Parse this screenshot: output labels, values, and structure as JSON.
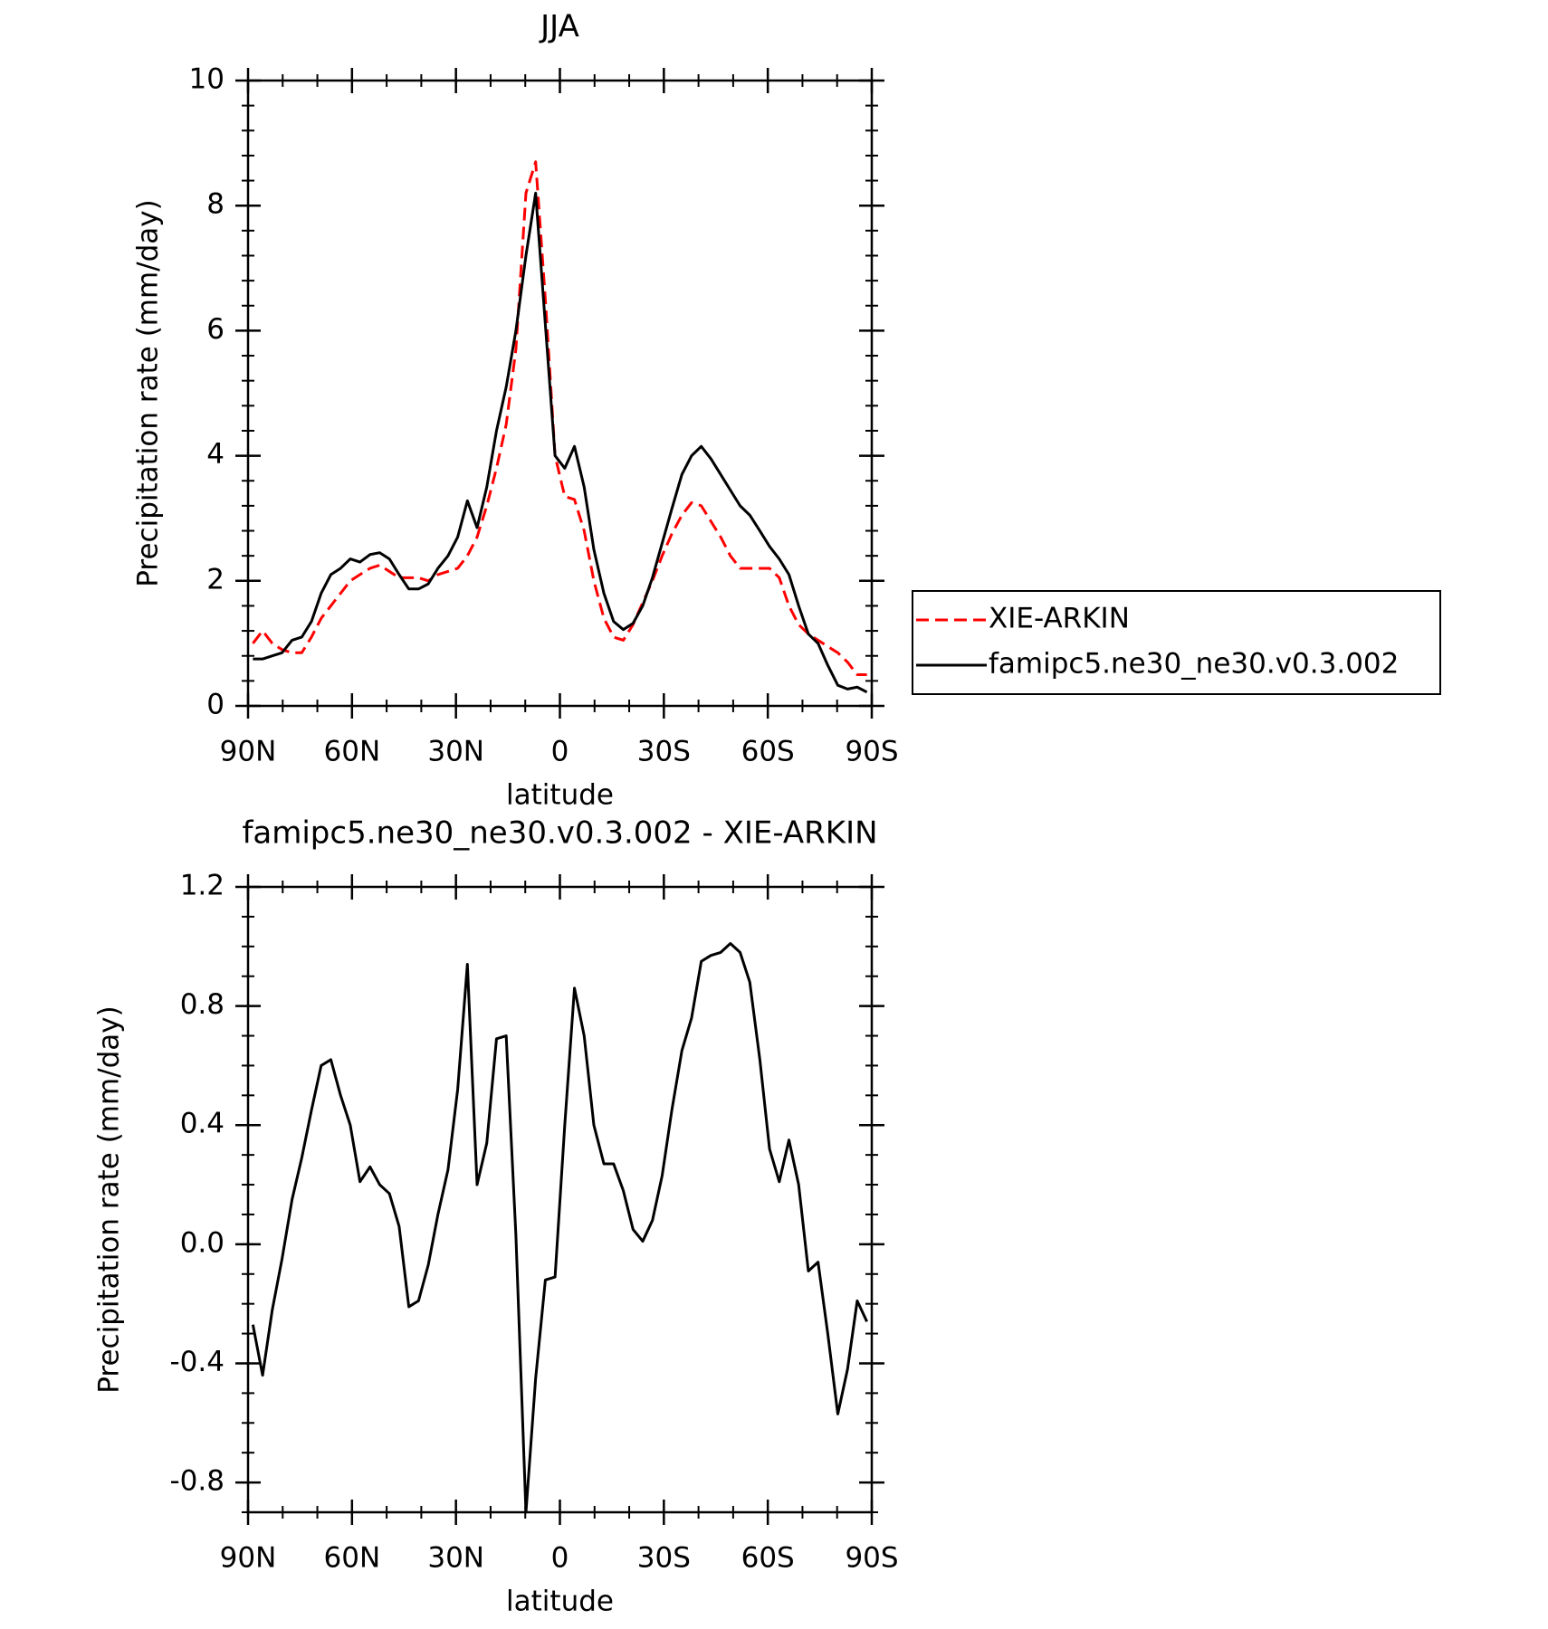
{
  "chart_data": [
    {
      "type": "line",
      "title": "JJA",
      "xlabel": "latitude",
      "ylabel": "Precipitation rate (mm/day)",
      "x": [
        88.6,
        85.8,
        83.0,
        80.2,
        77.3,
        74.5,
        71.7,
        68.9,
        66.1,
        63.3,
        60.5,
        57.7,
        54.8,
        52.0,
        49.2,
        46.4,
        43.6,
        40.8,
        38.0,
        35.2,
        32.3,
        29.5,
        26.7,
        23.9,
        21.1,
        18.3,
        15.5,
        12.7,
        9.8,
        7.0,
        4.2,
        1.4,
        -1.4,
        -4.2,
        -7.0,
        -9.8,
        -12.7,
        -15.5,
        -18.3,
        -21.1,
        -23.9,
        -26.7,
        -29.5,
        -32.3,
        -35.2,
        -38.0,
        -40.8,
        -43.6,
        -46.4,
        -49.2,
        -52.0,
        -54.8,
        -57.7,
        -60.5,
        -63.3,
        -66.1,
        -68.9,
        -71.7,
        -74.5,
        -77.3,
        -80.2,
        -83.0,
        -85.8,
        -88.6
      ],
      "xlim": [
        90,
        -90
      ],
      "xticks": [
        {
          "value": 90,
          "label": "90N"
        },
        {
          "value": 60,
          "label": "60N"
        },
        {
          "value": 30,
          "label": "30N"
        },
        0,
        {
          "value": -30,
          "label": "30S"
        },
        {
          "value": -60,
          "label": "60S"
        },
        {
          "value": -90,
          "label": "90S"
        }
      ],
      "ylim": [
        0,
        10
      ],
      "yticks": [
        0,
        2,
        4,
        6,
        8,
        10
      ],
      "legend": "right",
      "series": [
        {
          "name": "XIE-ARKIN",
          "color": "#ff0000",
          "linestyle": "dashed",
          "values": [
            1.0,
            1.2,
            1.0,
            0.9,
            0.85,
            0.85,
            1.1,
            1.4,
            1.6,
            1.8,
            2.0,
            2.1,
            2.2,
            2.25,
            2.15,
            2.05,
            2.05,
            2.05,
            2.0,
            2.1,
            2.15,
            2.2,
            2.4,
            2.7,
            3.2,
            3.8,
            4.5,
            5.7,
            8.2,
            8.7,
            6.5,
            4.0,
            3.35,
            3.3,
            2.8,
            2.0,
            1.4,
            1.1,
            1.05,
            1.3,
            1.65,
            2.0,
            2.4,
            2.75,
            3.05,
            3.25,
            3.2,
            2.95,
            2.7,
            2.4,
            2.2,
            2.2,
            2.2,
            2.2,
            2.05,
            1.6,
            1.3,
            1.15,
            1.05,
            0.95,
            0.85,
            0.7,
            0.5,
            0.5
          ]
        },
        {
          "name": "famipc5.ne30_ne30.v0.3.002",
          "color": "#000000",
          "linestyle": "solid",
          "values": [
            0.75,
            0.75,
            0.8,
            0.85,
            1.05,
            1.1,
            1.35,
            1.8,
            2.1,
            2.2,
            2.35,
            2.3,
            2.42,
            2.45,
            2.35,
            2.1,
            1.87,
            1.87,
            1.95,
            2.2,
            2.4,
            2.7,
            3.28,
            2.85,
            3.5,
            4.4,
            5.1,
            6.0,
            7.2,
            8.2,
            6.1,
            4.0,
            3.8,
            4.15,
            3.5,
            2.5,
            1.8,
            1.35,
            1.22,
            1.32,
            1.6,
            2.05,
            2.6,
            3.15,
            3.7,
            4.0,
            4.15,
            3.95,
            3.7,
            3.45,
            3.2,
            3.05,
            2.8,
            2.55,
            2.35,
            2.1,
            1.6,
            1.15,
            1.0,
            0.65,
            0.33,
            0.27,
            0.3,
            0.22
          ]
        }
      ]
    },
    {
      "type": "line",
      "title": "famipc5.ne30_ne30.v0.3.002 - XIE-ARKIN",
      "xlabel": "latitude",
      "ylabel": "Precipitation rate (mm/day)",
      "x": [
        88.6,
        85.8,
        83.0,
        80.2,
        77.3,
        74.5,
        71.7,
        68.9,
        66.1,
        63.3,
        60.5,
        57.7,
        54.8,
        52.0,
        49.2,
        46.4,
        43.6,
        40.8,
        38.0,
        35.2,
        32.3,
        29.5,
        26.7,
        23.9,
        21.1,
        18.3,
        15.5,
        12.7,
        9.8,
        7.0,
        4.2,
        1.4,
        -1.4,
        -4.2,
        -7.0,
        -9.8,
        -12.7,
        -15.5,
        -18.3,
        -21.1,
        -23.9,
        -26.7,
        -29.5,
        -32.3,
        -35.2,
        -38.0,
        -40.8,
        -43.6,
        -46.4,
        -49.2,
        -52.0,
        -54.8,
        -57.7,
        -60.5,
        -63.3,
        -66.1,
        -68.9,
        -71.7,
        -74.5,
        -77.3,
        -80.2,
        -83.0,
        -85.8,
        -88.6
      ],
      "xlim": [
        90,
        -90
      ],
      "xticks": [
        {
          "value": 90,
          "label": "90N"
        },
        {
          "value": 60,
          "label": "60N"
        },
        {
          "value": 30,
          "label": "30N"
        },
        0,
        {
          "value": -30,
          "label": "30S"
        },
        {
          "value": -60,
          "label": "60S"
        },
        {
          "value": -90,
          "label": "90S"
        }
      ],
      "ylim": [
        -0.9,
        1.2
      ],
      "yticks": [
        -0.8,
        -0.4,
        {
          "value": 0,
          "label": "0.0"
        },
        0.4,
        0.8,
        1.2
      ],
      "series": [
        {
          "color": "#000000",
          "linestyle": "solid",
          "values": [
            -0.27,
            -0.44,
            -0.22,
            -0.05,
            0.15,
            0.29,
            0.45,
            0.6,
            0.62,
            0.5,
            0.4,
            0.21,
            0.26,
            0.2,
            0.17,
            0.06,
            -0.21,
            -0.19,
            -0.07,
            0.1,
            0.25,
            0.52,
            0.94,
            0.2,
            0.34,
            0.69,
            0.7,
            0.03,
            -0.9,
            -0.45,
            -0.12,
            -0.11,
            0.4,
            0.86,
            0.7,
            0.4,
            0.27,
            0.27,
            0.18,
            0.05,
            0.01,
            0.08,
            0.23,
            0.45,
            0.65,
            0.76,
            0.95,
            0.97,
            0.98,
            1.01,
            0.98,
            0.88,
            0.62,
            0.32,
            0.21,
            0.35,
            0.2,
            -0.09,
            -0.06,
            -0.3,
            -0.57,
            -0.42,
            -0.19,
            -0.26
          ]
        }
      ]
    }
  ]
}
